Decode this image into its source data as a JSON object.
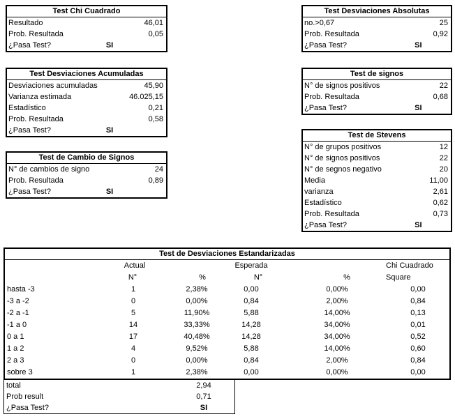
{
  "tests": {
    "chi_cuadrado": {
      "title": "Test Chi Cuadrado",
      "rows": [
        {
          "label": "Resultado",
          "value": "46,01"
        },
        {
          "label": "Prob. Resultada",
          "value": "0,05"
        },
        {
          "label": "¿Pasa Test?",
          "value": "SI"
        }
      ]
    },
    "desviaciones_acumuladas": {
      "title": "Test Desviaciones Acumuladas",
      "rows": [
        {
          "label": "Desviaciones acumuladas",
          "value": "45,90"
        },
        {
          "label": "Varianza estimada",
          "value": "46.025,15"
        },
        {
          "label": "Estadístico",
          "value": "0,21"
        },
        {
          "label": "Prob. Resultada",
          "value": "0,58"
        },
        {
          "label": "¿Pasa Test?",
          "value": "SI"
        }
      ]
    },
    "cambio_signos": {
      "title": "Test de Cambio de Signos",
      "rows": [
        {
          "label": "N° de cambios de signo",
          "value": "24"
        },
        {
          "label": "Prob. Resultada",
          "value": "0,89"
        },
        {
          "label": "¿Pasa Test?",
          "value": "SI"
        }
      ]
    },
    "desviaciones_absolutas": {
      "title": "Test Desviaciones Absolutas",
      "rows": [
        {
          "label": "no.>0,67",
          "value": "25"
        },
        {
          "label": "Prob. Resultada",
          "value": "0,92"
        },
        {
          "label": "¿Pasa Test?",
          "value": "SI"
        }
      ]
    },
    "signos": {
      "title": "Test de signos",
      "rows": [
        {
          "label": "N° de signos positivos",
          "value": "22"
        },
        {
          "label": "Prob. Resultada",
          "value": "0,68"
        },
        {
          "label": "¿Pasa Test?",
          "value": "SI"
        }
      ]
    },
    "stevens": {
      "title": "Test de Stevens",
      "rows": [
        {
          "label": "N° de grupos positivos",
          "value": "12"
        },
        {
          "label": "N° de signos positivos",
          "value": "22"
        },
        {
          "label": "N° de segnos negativo",
          "value": "20"
        },
        {
          "label": "Media",
          "value": "11,00"
        },
        {
          "label": "varianza",
          "value": "2,61"
        },
        {
          "label": "Estadístico",
          "value": "0,62"
        },
        {
          "label": "Prob. Resultada",
          "value": "0,73"
        },
        {
          "label": "¿Pasa Test?",
          "value": "SI"
        }
      ]
    }
  },
  "estandarizadas": {
    "title": "Test de Desviaciones Estandarizadas",
    "group_headers": {
      "actual": "Actual",
      "esperada": "Esperada",
      "chi": "Chi Cuadrado"
    },
    "col_headers": {
      "n1": "N°",
      "p1": "%",
      "n2": "N°",
      "p2": "%",
      "sq": "Square"
    },
    "rows": [
      {
        "label": "hasta -3",
        "actual_n": "1",
        "actual_p": "2,38%",
        "esp_n": "0,00",
        "esp_p": "0,00%",
        "chi": "0,00"
      },
      {
        "label": "-3 a -2",
        "actual_n": "0",
        "actual_p": "0,00%",
        "esp_n": "0,84",
        "esp_p": "2,00%",
        "chi": "0,84"
      },
      {
        "label": "-2 a -1",
        "actual_n": "5",
        "actual_p": "11,90%",
        "esp_n": "5,88",
        "esp_p": "14,00%",
        "chi": "0,13"
      },
      {
        "label": "-1 a 0",
        "actual_n": "14",
        "actual_p": "33,33%",
        "esp_n": "14,28",
        "esp_p": "34,00%",
        "chi": "0,01"
      },
      {
        "label": "0 a 1",
        "actual_n": "17",
        "actual_p": "40,48%",
        "esp_n": "14,28",
        "esp_p": "34,00%",
        "chi": "0,52"
      },
      {
        "label": "1 a 2",
        "actual_n": "4",
        "actual_p": "9,52%",
        "esp_n": "5,88",
        "esp_p": "14,00%",
        "chi": "0,60"
      },
      {
        "label": "2 a 3",
        "actual_n": "0",
        "actual_p": "0,00%",
        "esp_n": "0,84",
        "esp_p": "2,00%",
        "chi": "0,84"
      },
      {
        "label": "sobre 3",
        "actual_n": "1",
        "actual_p": "2,38%",
        "esp_n": "0,00",
        "esp_p": "0,00%",
        "chi": "0,00"
      }
    ],
    "footer": [
      {
        "label": "total",
        "value": "2,94"
      },
      {
        "label": "Prob result",
        "value": "0,71"
      },
      {
        "label": "¿Pasa Test?",
        "value": "SI"
      }
    ]
  }
}
